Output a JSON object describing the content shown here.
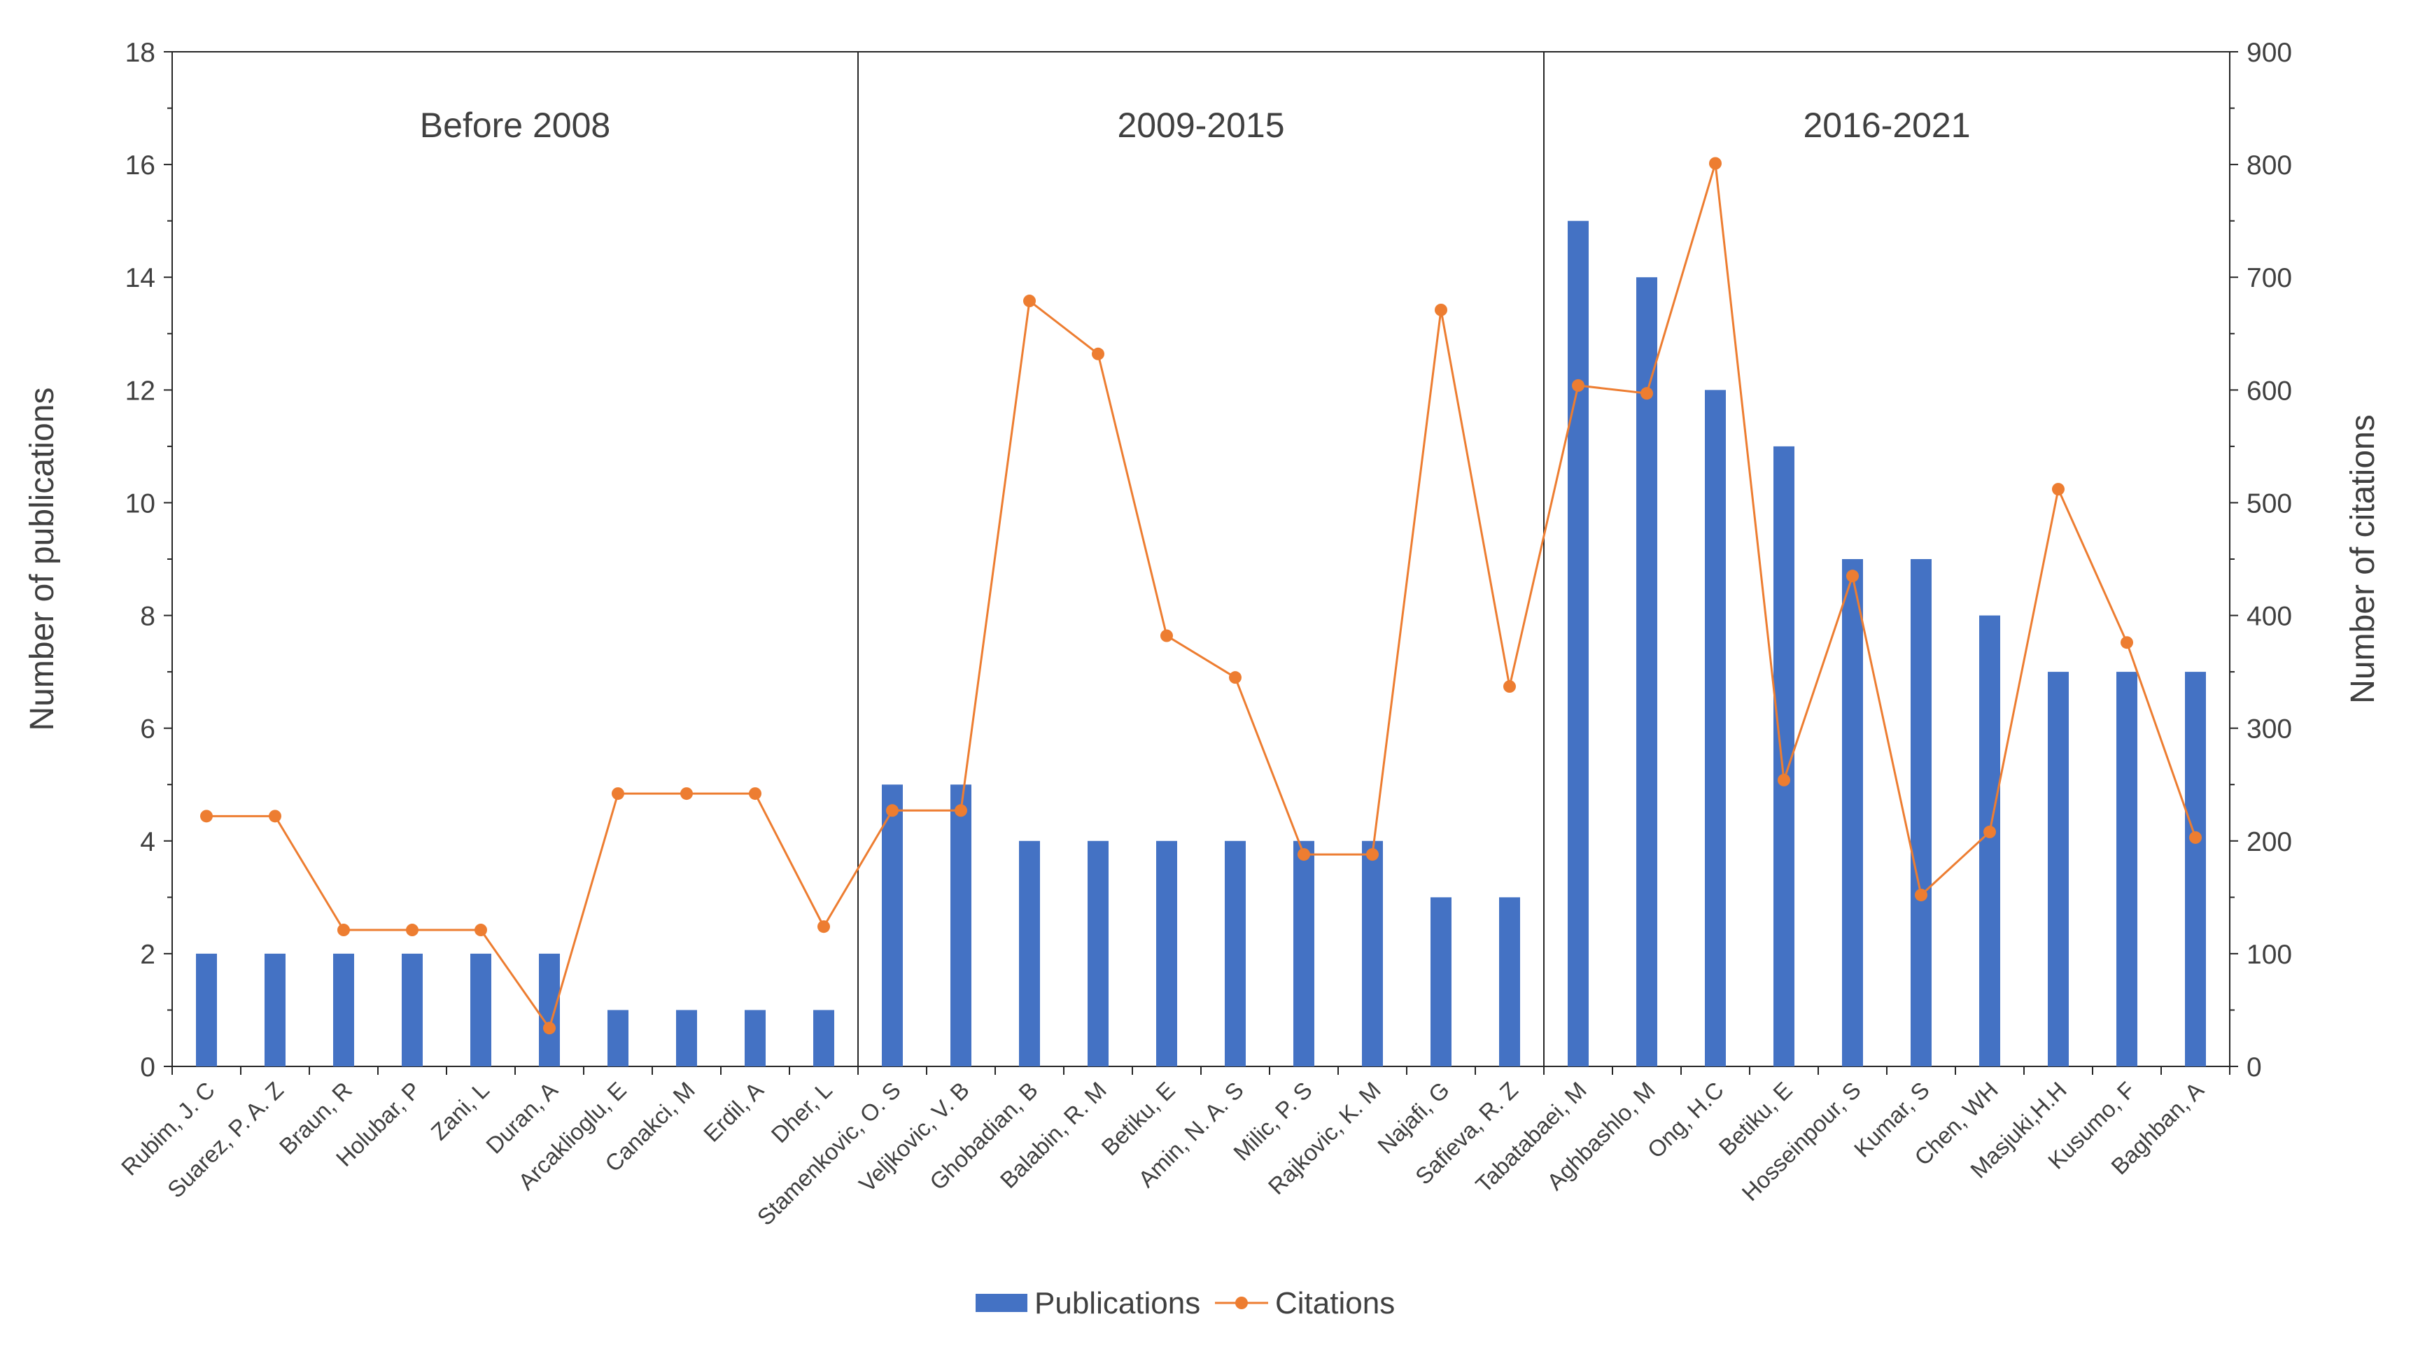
{
  "chart_data": {
    "type": "bar+line",
    "categories": [
      "Rubim, J. C",
      "Suarez, P. A. Z",
      "Braun, R",
      "Holubar, P",
      "Zani, L",
      "Duran, A",
      "Arcaklioglu, E",
      "Canakci, M",
      "Erdil, A",
      "Dher, L",
      "Stamenkovic, O. S",
      "Veljkovic, V. B",
      "Ghobadian, B",
      "Balabin, R. M",
      "Betiku, E",
      "Amin, N. A. S",
      "Milic, P. S",
      "Rajkovic, K. M",
      "Najafi, G",
      "Safieva, R. Z",
      "Tabatabaei, M",
      "Aghbashlo, M",
      "Ong, H.C",
      "Betiku, E",
      "Hosseinpour, S",
      "Kumar, S",
      "Chen, WH",
      "Masjuki,H.H",
      "Kusumo, F",
      "Baghban, A"
    ],
    "series": [
      {
        "name": "Publications",
        "type": "bar",
        "axis": "left",
        "color": "#4472C4",
        "values": [
          2,
          2,
          2,
          2,
          2,
          2,
          1,
          1,
          1,
          1,
          5,
          5,
          4,
          4,
          4,
          4,
          4,
          4,
          3,
          3,
          15,
          14,
          12,
          11,
          9,
          9,
          8,
          7,
          7,
          7
        ]
      },
      {
        "name": "Citations",
        "type": "line",
        "axis": "right",
        "color": "#ED7D31",
        "values": [
          222,
          222,
          121,
          121,
          121,
          34,
          242,
          242,
          242,
          124,
          227,
          227,
          679,
          632,
          382,
          345,
          188,
          188,
          671,
          337,
          604,
          597,
          801,
          254,
          435,
          152,
          208,
          512,
          376,
          203
        ]
      }
    ],
    "groups": [
      {
        "label": "Before 2008",
        "start": 0,
        "end": 9
      },
      {
        "label": "2009-2015",
        "start": 10,
        "end": 19
      },
      {
        "label": "2016-2021",
        "start": 20,
        "end": 29
      }
    ],
    "ylabel": "Number of publications",
    "y2label": "Number of citations",
    "ylim": [
      0,
      18
    ],
    "yticks": [
      0,
      2,
      4,
      6,
      8,
      10,
      12,
      14,
      16,
      18
    ],
    "y2lim": [
      0,
      900
    ],
    "y2ticks": [
      0,
      100,
      200,
      300,
      400,
      500,
      600,
      700,
      800,
      900
    ],
    "legend": {
      "position": "bottom",
      "items": [
        "Publications",
        "Citations"
      ]
    }
  }
}
